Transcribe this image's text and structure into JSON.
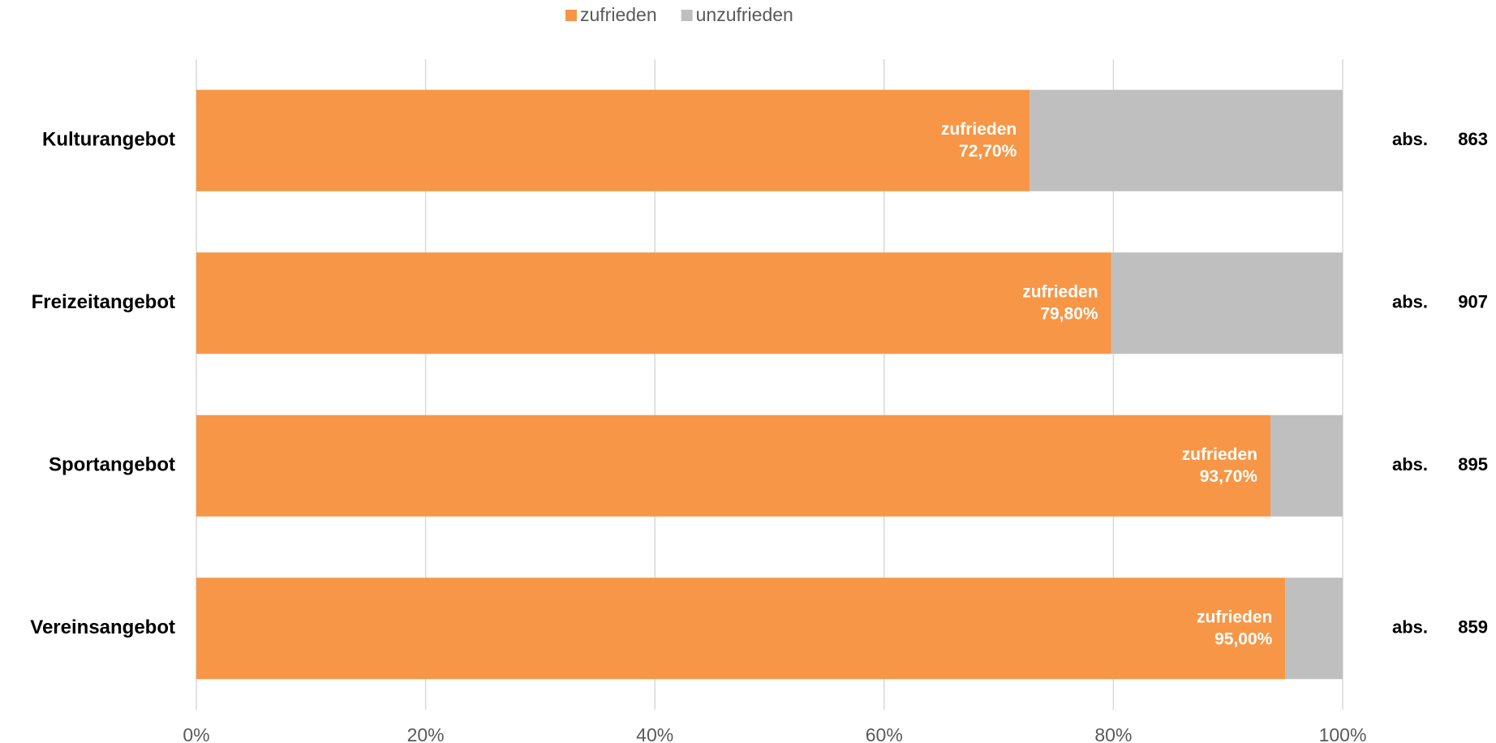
{
  "chart_data": {
    "type": "stacked_barh",
    "categories": [
      "Kulturangebot",
      "Freizeitangebot",
      "Sportangebot",
      "Vereinsangebot"
    ],
    "series": [
      {
        "name": "zufrieden",
        "color": "#f79646",
        "values": [
          72.7,
          79.8,
          93.7,
          95.0
        ],
        "value_labels": [
          "72,70%",
          "79,80%",
          "93,70%",
          "95,00%"
        ]
      },
      {
        "name": "unzufrieden",
        "color": "#bfbfbf",
        "values": [
          27.3,
          20.2,
          6.3,
          5.0
        ]
      }
    ],
    "abs_label": "abs.",
    "abs_values": [
      863,
      907,
      895,
      859
    ],
    "xlim": [
      0,
      100
    ],
    "xticks": [
      {
        "value": 0,
        "label": "0%"
      },
      {
        "value": 20,
        "label": "20%"
      },
      {
        "value": 40,
        "label": "40%"
      },
      {
        "value": 60,
        "label": "60%"
      },
      {
        "value": 80,
        "label": "80%"
      },
      {
        "value": 100,
        "label": "100%"
      }
    ],
    "grid": true,
    "legend": "top"
  }
}
